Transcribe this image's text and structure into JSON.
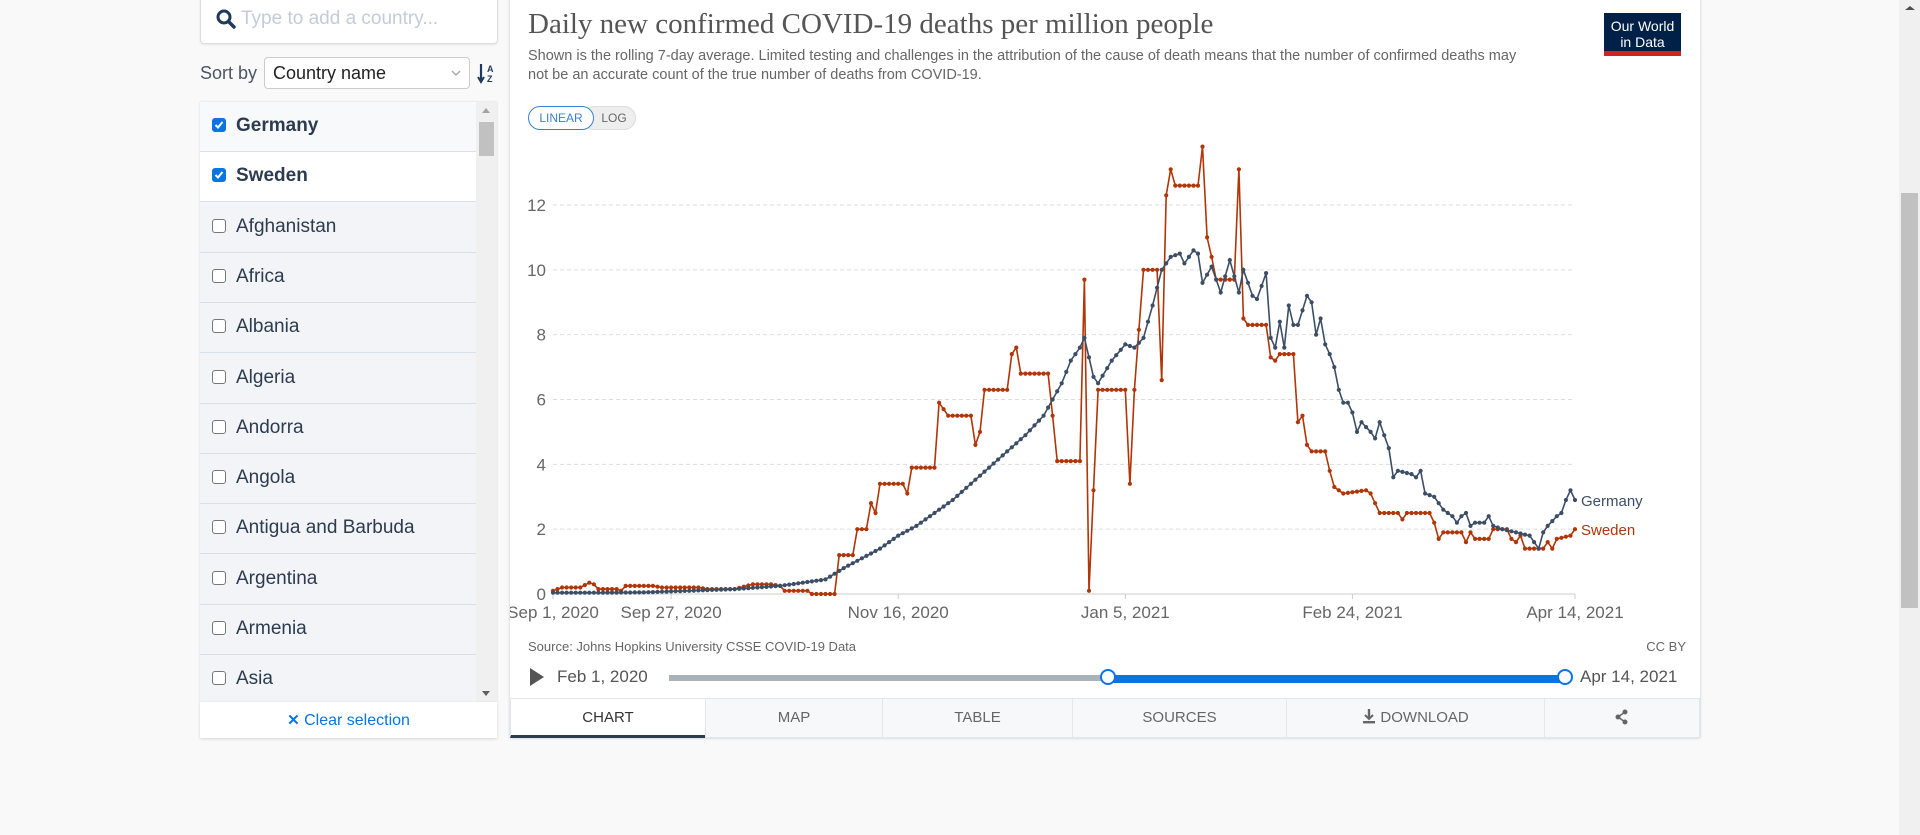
{
  "search": {
    "placeholder": "Type to add a country..."
  },
  "sort": {
    "label": "Sort by",
    "value": "Country name"
  },
  "country_list": [
    {
      "name": "Germany",
      "checked": true
    },
    {
      "name": "Sweden",
      "checked": true
    },
    {
      "name": "Afghanistan",
      "checked": false
    },
    {
      "name": "Africa",
      "checked": false
    },
    {
      "name": "Albania",
      "checked": false
    },
    {
      "name": "Algeria",
      "checked": false
    },
    {
      "name": "Andorra",
      "checked": false
    },
    {
      "name": "Angola",
      "checked": false
    },
    {
      "name": "Antigua and Barbuda",
      "checked": false
    },
    {
      "name": "Argentina",
      "checked": false
    },
    {
      "name": "Armenia",
      "checked": false
    },
    {
      "name": "Asia",
      "checked": false
    }
  ],
  "clear_selection": "Clear selection",
  "logo": {
    "line1": "Our World",
    "line2": "in Data"
  },
  "scale_buttons": {
    "linear": "LINEAR",
    "log": "LOG",
    "active": "linear"
  },
  "source": "Source: Johns Hopkins University CSSE COVID-19 Data",
  "license": "CC BY",
  "timeline": {
    "start": "Feb 1, 2020",
    "end": "Apr 14, 2021",
    "selected_start_fraction": 0.49,
    "selected_end_fraction": 1.0
  },
  "tabs": [
    {
      "label": "CHART",
      "active": true
    },
    {
      "label": "MAP",
      "active": false
    },
    {
      "label": "TABLE",
      "active": false
    },
    {
      "label": "SOURCES",
      "active": false
    },
    {
      "label": "DOWNLOAD",
      "active": false
    },
    {
      "label": "",
      "icon": "share-icon",
      "active": false
    }
  ],
  "colors": {
    "germany": "#3c4e66",
    "sweden": "#b13507",
    "accent": "#0a74e4"
  },
  "chart_data": {
    "type": "line",
    "title": "Daily new confirmed COVID-19 deaths per million people",
    "subtitle": "Shown is the rolling 7-day average. Limited testing and challenges in the attribution of the cause of death means that the number of confirmed deaths may not be an accurate count of the true number of deaths from COVID-19.",
    "xlabel": "",
    "ylabel": "",
    "x_start": "2020-09-01",
    "x_end": "2021-04-14",
    "x_ticks": [
      "Sep 1, 2020",
      "Sep 27, 2020",
      "Nov 16, 2020",
      "Jan 5, 2021",
      "Feb 24, 2021",
      "Apr 14, 2021"
    ],
    "x_tick_days": [
      0,
      26,
      76,
      126,
      176,
      225
    ],
    "y_ticks": [
      0,
      2,
      4,
      6,
      8,
      10,
      12
    ],
    "ylim": [
      0,
      13.5
    ],
    "grid": true,
    "legend": "inline-right",
    "series": [
      {
        "name": "Germany",
        "keypoints": [
          [
            0,
            0.04
          ],
          [
            10,
            0.04
          ],
          [
            20,
            0.05
          ],
          [
            30,
            0.1
          ],
          [
            40,
            0.15
          ],
          [
            50,
            0.25
          ],
          [
            55,
            0.35
          ],
          [
            60,
            0.45
          ],
          [
            64,
            0.8
          ],
          [
            68,
            1.1
          ],
          [
            72,
            1.4
          ],
          [
            76,
            1.8
          ],
          [
            80,
            2.1
          ],
          [
            84,
            2.5
          ],
          [
            88,
            2.9
          ],
          [
            92,
            3.4
          ],
          [
            96,
            3.9
          ],
          [
            100,
            4.4
          ],
          [
            104,
            4.9
          ],
          [
            108,
            5.5
          ],
          [
            112,
            6.5
          ],
          [
            114,
            7.2
          ],
          [
            116,
            7.6
          ],
          [
            117,
            7.9
          ],
          [
            119,
            6.7
          ],
          [
            120,
            6.5
          ],
          [
            123,
            7.2
          ],
          [
            126,
            7.7
          ],
          [
            128,
            7.6
          ],
          [
            130,
            7.9
          ],
          [
            132,
            8.9
          ],
          [
            134,
            10.0
          ],
          [
            136,
            10.4
          ],
          [
            138,
            10.5
          ],
          [
            139,
            10.2
          ],
          [
            141,
            10.6
          ],
          [
            142,
            10.5
          ],
          [
            143,
            9.6
          ],
          [
            145,
            10.1
          ],
          [
            147,
            9.3
          ],
          [
            149,
            10.3
          ],
          [
            151,
            9.3
          ],
          [
            152,
            10.0
          ],
          [
            154,
            9.2
          ],
          [
            155,
            9.1
          ],
          [
            157,
            9.9
          ],
          [
            158,
            7.9
          ],
          [
            159,
            7.6
          ],
          [
            160,
            8.4
          ],
          [
            161,
            7.6
          ],
          [
            162,
            8.9
          ],
          [
            163,
            8.3
          ],
          [
            164,
            8.3
          ],
          [
            166,
            9.2
          ],
          [
            167,
            9.0
          ],
          [
            168,
            8.0
          ],
          [
            169,
            8.5
          ],
          [
            170,
            7.7
          ],
          [
            171,
            7.4
          ],
          [
            172,
            7.0
          ],
          [
            173,
            6.3
          ],
          [
            174,
            5.9
          ],
          [
            175,
            5.9
          ],
          [
            176,
            5.6
          ],
          [
            177,
            5.0
          ],
          [
            178,
            5.3
          ],
          [
            180,
            5.0
          ],
          [
            181,
            4.8
          ],
          [
            182,
            5.3
          ],
          [
            183,
            4.9
          ],
          [
            184,
            4.5
          ],
          [
            185,
            3.6
          ],
          [
            186,
            3.8
          ],
          [
            189,
            3.7
          ],
          [
            190,
            3.6
          ],
          [
            191,
            3.8
          ],
          [
            192,
            3.1
          ],
          [
            194,
            3.0
          ],
          [
            195,
            2.8
          ],
          [
            196,
            2.6
          ],
          [
            198,
            2.4
          ],
          [
            199,
            2.2
          ],
          [
            200,
            2.4
          ],
          [
            201,
            2.5
          ],
          [
            202,
            2.1
          ],
          [
            203,
            2.2
          ],
          [
            205,
            2.2
          ],
          [
            206,
            2.4
          ],
          [
            207,
            2.1
          ],
          [
            209,
            2.0
          ],
          [
            212,
            1.9
          ],
          [
            215,
            1.8
          ],
          [
            216,
            1.6
          ],
          [
            217,
            1.4
          ],
          [
            218,
            1.9
          ],
          [
            219,
            2.1
          ],
          [
            221,
            2.4
          ],
          [
            222,
            2.5
          ],
          [
            223,
            2.9
          ],
          [
            224,
            3.2
          ],
          [
            225,
            2.9
          ]
        ]
      },
      {
        "name": "Sweden",
        "keypoints": [
          [
            0,
            0.1
          ],
          [
            2,
            0.2
          ],
          [
            6,
            0.2
          ],
          [
            8,
            0.35
          ],
          [
            9,
            0.3
          ],
          [
            10,
            0.15
          ],
          [
            14,
            0.15
          ],
          [
            15,
            0.1
          ],
          [
            16,
            0.25
          ],
          [
            22,
            0.25
          ],
          [
            24,
            0.2
          ],
          [
            32,
            0.2
          ],
          [
            34,
            0.15
          ],
          [
            40,
            0.15
          ],
          [
            44,
            0.3
          ],
          [
            48,
            0.3
          ],
          [
            50,
            0.25
          ],
          [
            51,
            0.1
          ],
          [
            56,
            0.1
          ],
          [
            57,
            0.0
          ],
          [
            62,
            0.0
          ],
          [
            63,
            1.2
          ],
          [
            66,
            1.2
          ],
          [
            67,
            2.0
          ],
          [
            69,
            2.0
          ],
          [
            70,
            2.8
          ],
          [
            71,
            2.5
          ],
          [
            72,
            3.4
          ],
          [
            77,
            3.4
          ],
          [
            78,
            3.1
          ],
          [
            79,
            3.9
          ],
          [
            84,
            3.9
          ],
          [
            85,
            5.9
          ],
          [
            87,
            5.5
          ],
          [
            92,
            5.5
          ],
          [
            93,
            4.6
          ],
          [
            94,
            5.0
          ],
          [
            95,
            6.3
          ],
          [
            100,
            6.3
          ],
          [
            101,
            7.4
          ],
          [
            102,
            7.6
          ],
          [
            103,
            6.8
          ],
          [
            109,
            6.8
          ],
          [
            110,
            5.5
          ],
          [
            111,
            4.1
          ],
          [
            116,
            4.1
          ],
          [
            117,
            9.7
          ],
          [
            118,
            0.1
          ],
          [
            120,
            6.3
          ],
          [
            126,
            6.3
          ],
          [
            127,
            3.4
          ],
          [
            128,
            6.3
          ],
          [
            130,
            10.0
          ],
          [
            133,
            10.0
          ],
          [
            134,
            6.6
          ],
          [
            135,
            12.3
          ],
          [
            136,
            13.1
          ],
          [
            137,
            12.6
          ],
          [
            142,
            12.6
          ],
          [
            143,
            13.8
          ],
          [
            144,
            11.0
          ],
          [
            145,
            10.4
          ],
          [
            146,
            9.7
          ],
          [
            150,
            9.7
          ],
          [
            151,
            13.1
          ],
          [
            152,
            8.5
          ],
          [
            153,
            8.3
          ],
          [
            157,
            8.3
          ],
          [
            158,
            7.3
          ],
          [
            159,
            7.2
          ],
          [
            160,
            7.4
          ],
          [
            163,
            7.4
          ],
          [
            164,
            5.3
          ],
          [
            165,
            5.5
          ],
          [
            166,
            4.6
          ],
          [
            167,
            4.4
          ],
          [
            170,
            4.4
          ],
          [
            171,
            3.8
          ],
          [
            172,
            3.3
          ],
          [
            174,
            3.1
          ],
          [
            179,
            3.2
          ],
          [
            180,
            3.1
          ],
          [
            181,
            2.8
          ],
          [
            182,
            2.5
          ],
          [
            186,
            2.5
          ],
          [
            187,
            2.3
          ],
          [
            188,
            2.5
          ],
          [
            193,
            2.5
          ],
          [
            194,
            2.2
          ],
          [
            195,
            1.7
          ],
          [
            196,
            1.9
          ],
          [
            200,
            1.9
          ],
          [
            201,
            1.6
          ],
          [
            202,
            1.9
          ],
          [
            203,
            1.7
          ],
          [
            206,
            1.7
          ],
          [
            207,
            2.0
          ],
          [
            210,
            2.0
          ],
          [
            211,
            1.7
          ],
          [
            212,
            1.6
          ],
          [
            213,
            1.8
          ],
          [
            214,
            1.4
          ],
          [
            218,
            1.4
          ],
          [
            219,
            1.6
          ],
          [
            220,
            1.4
          ],
          [
            221,
            1.7
          ],
          [
            224,
            1.8
          ],
          [
            225,
            2.0
          ]
        ]
      }
    ]
  }
}
